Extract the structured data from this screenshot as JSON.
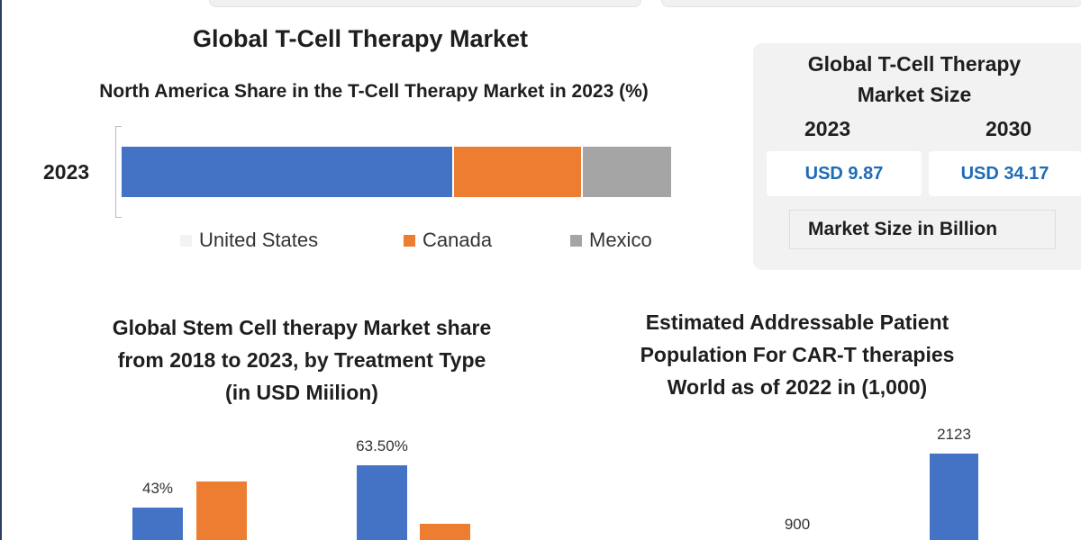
{
  "header": {
    "title": "Global T-Cell Therapy Market"
  },
  "colors": {
    "us_blue": "#4472c4",
    "canada_orange": "#ed7d31",
    "mexico_gray": "#a5a5a5",
    "value_blue": "#1f6bb5",
    "panel_bg": "#f2f2f2"
  },
  "market_size": {
    "title": "Global T-Cell Therapy Market Size",
    "year_a": "2023",
    "year_b": "2030",
    "value_a": "USD 9.87",
    "value_b": "USD 34.17",
    "unit": "Market Size in Billion"
  },
  "chart_data": [
    {
      "type": "bar",
      "orientation": "horizontal-stacked",
      "title": "North America Share in the T-Cell Therapy Market in 2023 (%)",
      "categories": [
        "2023"
      ],
      "series": [
        {
          "name": "United States",
          "values": [
            60.5
          ],
          "color": "#4472c4"
        },
        {
          "name": "Canada",
          "values": [
            23.5
          ],
          "color": "#ed7d31"
        },
        {
          "name": "Mexico",
          "values": [
            16.0
          ],
          "color": "#a5a5a5"
        }
      ],
      "legend": "bottom",
      "legend_labels": [
        "United States",
        "Canada",
        "Mexico"
      ],
      "grid": false
    },
    {
      "type": "bar",
      "title": "Global Stem Cell therapy Market share from 2018 to 2023, by Treatment Type (in USD Miilion)",
      "series": [
        {
          "color": "#4472c4",
          "values": [
            43,
            63.5
          ]
        },
        {
          "color": "#ed7d31",
          "values": [
            57,
            36.5
          ]
        }
      ],
      "data_labels": [
        "43%",
        "63.50%"
      ],
      "grid": false
    },
    {
      "type": "bar",
      "title": "Estimated Addressable Patient Population For CAR-T therapies World as of 2022 in (1,000)",
      "series": [
        {
          "color": "#4472c4",
          "values": [
            900,
            2123
          ]
        }
      ],
      "data_labels": [
        "900",
        "2123"
      ],
      "grid": false
    }
  ]
}
